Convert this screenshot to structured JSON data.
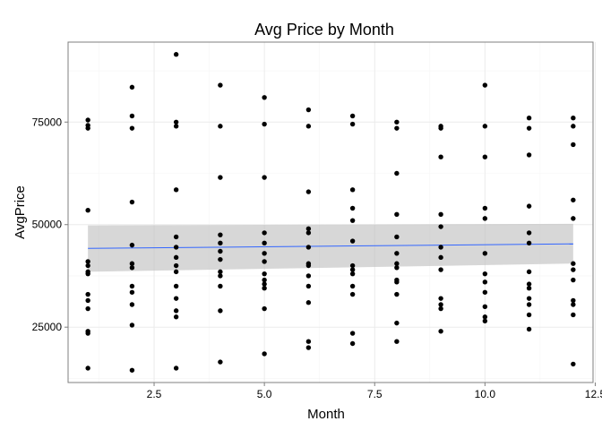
{
  "chart_data": {
    "type": "scatter",
    "title": "Avg Price by Month",
    "xlabel": "Month",
    "ylabel": "AvgPrice",
    "xlim": [
      0.55,
      12.45
    ],
    "ylim": [
      11500,
      94500
    ],
    "x_ticks": [
      2.5,
      5.0,
      7.5,
      10.0,
      12.5
    ],
    "x_tick_labels": [
      "2.5",
      "5.0",
      "7.5",
      "10.0",
      "12.5"
    ],
    "y_ticks": [
      25000,
      50000,
      75000
    ],
    "y_tick_labels": [
      "25000",
      "50000",
      "75000"
    ],
    "grid": true,
    "theme": "bw",
    "point_color": "#000000",
    "smooth_color": "#3366FF",
    "ribbon_color": "#BEBEBE",
    "points": [
      {
        "x": 1,
        "y": 75500
      },
      {
        "x": 1,
        "y": 74200
      },
      {
        "x": 1,
        "y": 73500
      },
      {
        "x": 1,
        "y": 53500
      },
      {
        "x": 1,
        "y": 41000
      },
      {
        "x": 1,
        "y": 40000
      },
      {
        "x": 1,
        "y": 38500
      },
      {
        "x": 1,
        "y": 38000
      },
      {
        "x": 1,
        "y": 33000
      },
      {
        "x": 1,
        "y": 31500
      },
      {
        "x": 1,
        "y": 29500
      },
      {
        "x": 1,
        "y": 24000
      },
      {
        "x": 1,
        "y": 23500
      },
      {
        "x": 1,
        "y": 15000
      },
      {
        "x": 2,
        "y": 83500
      },
      {
        "x": 2,
        "y": 76500
      },
      {
        "x": 2,
        "y": 73500
      },
      {
        "x": 2,
        "y": 55500
      },
      {
        "x": 2,
        "y": 45000
      },
      {
        "x": 2,
        "y": 40500
      },
      {
        "x": 2,
        "y": 39500
      },
      {
        "x": 2,
        "y": 35000
      },
      {
        "x": 2,
        "y": 33500
      },
      {
        "x": 2,
        "y": 30500
      },
      {
        "x": 2,
        "y": 25500
      },
      {
        "x": 2,
        "y": 14500
      },
      {
        "x": 3,
        "y": 91500
      },
      {
        "x": 3,
        "y": 75000
      },
      {
        "x": 3,
        "y": 74000
      },
      {
        "x": 3,
        "y": 58500
      },
      {
        "x": 3,
        "y": 47000
      },
      {
        "x": 3,
        "y": 44500
      },
      {
        "x": 3,
        "y": 42000
      },
      {
        "x": 3,
        "y": 40000
      },
      {
        "x": 3,
        "y": 38500
      },
      {
        "x": 3,
        "y": 35000
      },
      {
        "x": 3,
        "y": 32000
      },
      {
        "x": 3,
        "y": 29000
      },
      {
        "x": 3,
        "y": 27500
      },
      {
        "x": 3,
        "y": 15000
      },
      {
        "x": 4,
        "y": 84000
      },
      {
        "x": 4,
        "y": 74000
      },
      {
        "x": 4,
        "y": 61500
      },
      {
        "x": 4,
        "y": 47500
      },
      {
        "x": 4,
        "y": 45500
      },
      {
        "x": 4,
        "y": 43500
      },
      {
        "x": 4,
        "y": 41500
      },
      {
        "x": 4,
        "y": 38500
      },
      {
        "x": 4,
        "y": 37500
      },
      {
        "x": 4,
        "y": 35000
      },
      {
        "x": 4,
        "y": 29000
      },
      {
        "x": 4,
        "y": 16500
      },
      {
        "x": 5,
        "y": 81000
      },
      {
        "x": 5,
        "y": 74500
      },
      {
        "x": 5,
        "y": 61500
      },
      {
        "x": 5,
        "y": 48000
      },
      {
        "x": 5,
        "y": 45500
      },
      {
        "x": 5,
        "y": 43000
      },
      {
        "x": 5,
        "y": 41000
      },
      {
        "x": 5,
        "y": 38000
      },
      {
        "x": 5,
        "y": 36500
      },
      {
        "x": 5,
        "y": 35500
      },
      {
        "x": 5,
        "y": 34500
      },
      {
        "x": 5,
        "y": 29500
      },
      {
        "x": 5,
        "y": 18500
      },
      {
        "x": 6,
        "y": 78000
      },
      {
        "x": 6,
        "y": 74000
      },
      {
        "x": 6,
        "y": 58000
      },
      {
        "x": 6,
        "y": 49000
      },
      {
        "x": 6,
        "y": 48000
      },
      {
        "x": 6,
        "y": 44500
      },
      {
        "x": 6,
        "y": 40500
      },
      {
        "x": 6,
        "y": 40000
      },
      {
        "x": 6,
        "y": 37500
      },
      {
        "x": 6,
        "y": 35000
      },
      {
        "x": 6,
        "y": 31000
      },
      {
        "x": 6,
        "y": 21500
      },
      {
        "x": 6,
        "y": 20000
      },
      {
        "x": 7,
        "y": 76500
      },
      {
        "x": 7,
        "y": 74500
      },
      {
        "x": 7,
        "y": 58500
      },
      {
        "x": 7,
        "y": 54000
      },
      {
        "x": 7,
        "y": 51000
      },
      {
        "x": 7,
        "y": 46000
      },
      {
        "x": 7,
        "y": 40000
      },
      {
        "x": 7,
        "y": 39000
      },
      {
        "x": 7,
        "y": 38000
      },
      {
        "x": 7,
        "y": 35000
      },
      {
        "x": 7,
        "y": 33000
      },
      {
        "x": 7,
        "y": 23500
      },
      {
        "x": 7,
        "y": 21000
      },
      {
        "x": 8,
        "y": 75000
      },
      {
        "x": 8,
        "y": 73500
      },
      {
        "x": 8,
        "y": 62500
      },
      {
        "x": 8,
        "y": 52500
      },
      {
        "x": 8,
        "y": 47000
      },
      {
        "x": 8,
        "y": 43000
      },
      {
        "x": 8,
        "y": 40500
      },
      {
        "x": 8,
        "y": 39500
      },
      {
        "x": 8,
        "y": 36500
      },
      {
        "x": 8,
        "y": 36000
      },
      {
        "x": 8,
        "y": 33000
      },
      {
        "x": 8,
        "y": 26000
      },
      {
        "x": 8,
        "y": 21500
      },
      {
        "x": 9,
        "y": 74000
      },
      {
        "x": 9,
        "y": 73500
      },
      {
        "x": 9,
        "y": 66500
      },
      {
        "x": 9,
        "y": 52500
      },
      {
        "x": 9,
        "y": 49500
      },
      {
        "x": 9,
        "y": 44500
      },
      {
        "x": 9,
        "y": 42000
      },
      {
        "x": 9,
        "y": 39000
      },
      {
        "x": 9,
        "y": 32000
      },
      {
        "x": 9,
        "y": 30500
      },
      {
        "x": 9,
        "y": 29500
      },
      {
        "x": 9,
        "y": 24000
      },
      {
        "x": 10,
        "y": 84000
      },
      {
        "x": 10,
        "y": 74000
      },
      {
        "x": 10,
        "y": 66500
      },
      {
        "x": 10,
        "y": 54000
      },
      {
        "x": 10,
        "y": 51500
      },
      {
        "x": 10,
        "y": 43000
      },
      {
        "x": 10,
        "y": 38000
      },
      {
        "x": 10,
        "y": 36000
      },
      {
        "x": 10,
        "y": 33500
      },
      {
        "x": 10,
        "y": 30000
      },
      {
        "x": 10,
        "y": 27500
      },
      {
        "x": 10,
        "y": 26500
      },
      {
        "x": 11,
        "y": 76000
      },
      {
        "x": 11,
        "y": 73500
      },
      {
        "x": 11,
        "y": 67000
      },
      {
        "x": 11,
        "y": 54500
      },
      {
        "x": 11,
        "y": 48000
      },
      {
        "x": 11,
        "y": 45500
      },
      {
        "x": 11,
        "y": 38500
      },
      {
        "x": 11,
        "y": 35500
      },
      {
        "x": 11,
        "y": 34500
      },
      {
        "x": 11,
        "y": 32000
      },
      {
        "x": 11,
        "y": 30500
      },
      {
        "x": 11,
        "y": 28000
      },
      {
        "x": 11,
        "y": 24500
      },
      {
        "x": 12,
        "y": 76000
      },
      {
        "x": 12,
        "y": 74000
      },
      {
        "x": 12,
        "y": 69500
      },
      {
        "x": 12,
        "y": 56000
      },
      {
        "x": 12,
        "y": 51500
      },
      {
        "x": 12,
        "y": 40500
      },
      {
        "x": 12,
        "y": 39000
      },
      {
        "x": 12,
        "y": 36500
      },
      {
        "x": 12,
        "y": 31500
      },
      {
        "x": 12,
        "y": 30500
      },
      {
        "x": 12,
        "y": 28000
      },
      {
        "x": 12,
        "y": 16000
      }
    ],
    "smooth": {
      "method": "lm",
      "x": [
        1,
        12
      ],
      "y": [
        44200,
        45300
      ],
      "ribbon_lower": [
        38500,
        40500
      ],
      "ribbon_upper": [
        49800,
        50200
      ]
    }
  }
}
